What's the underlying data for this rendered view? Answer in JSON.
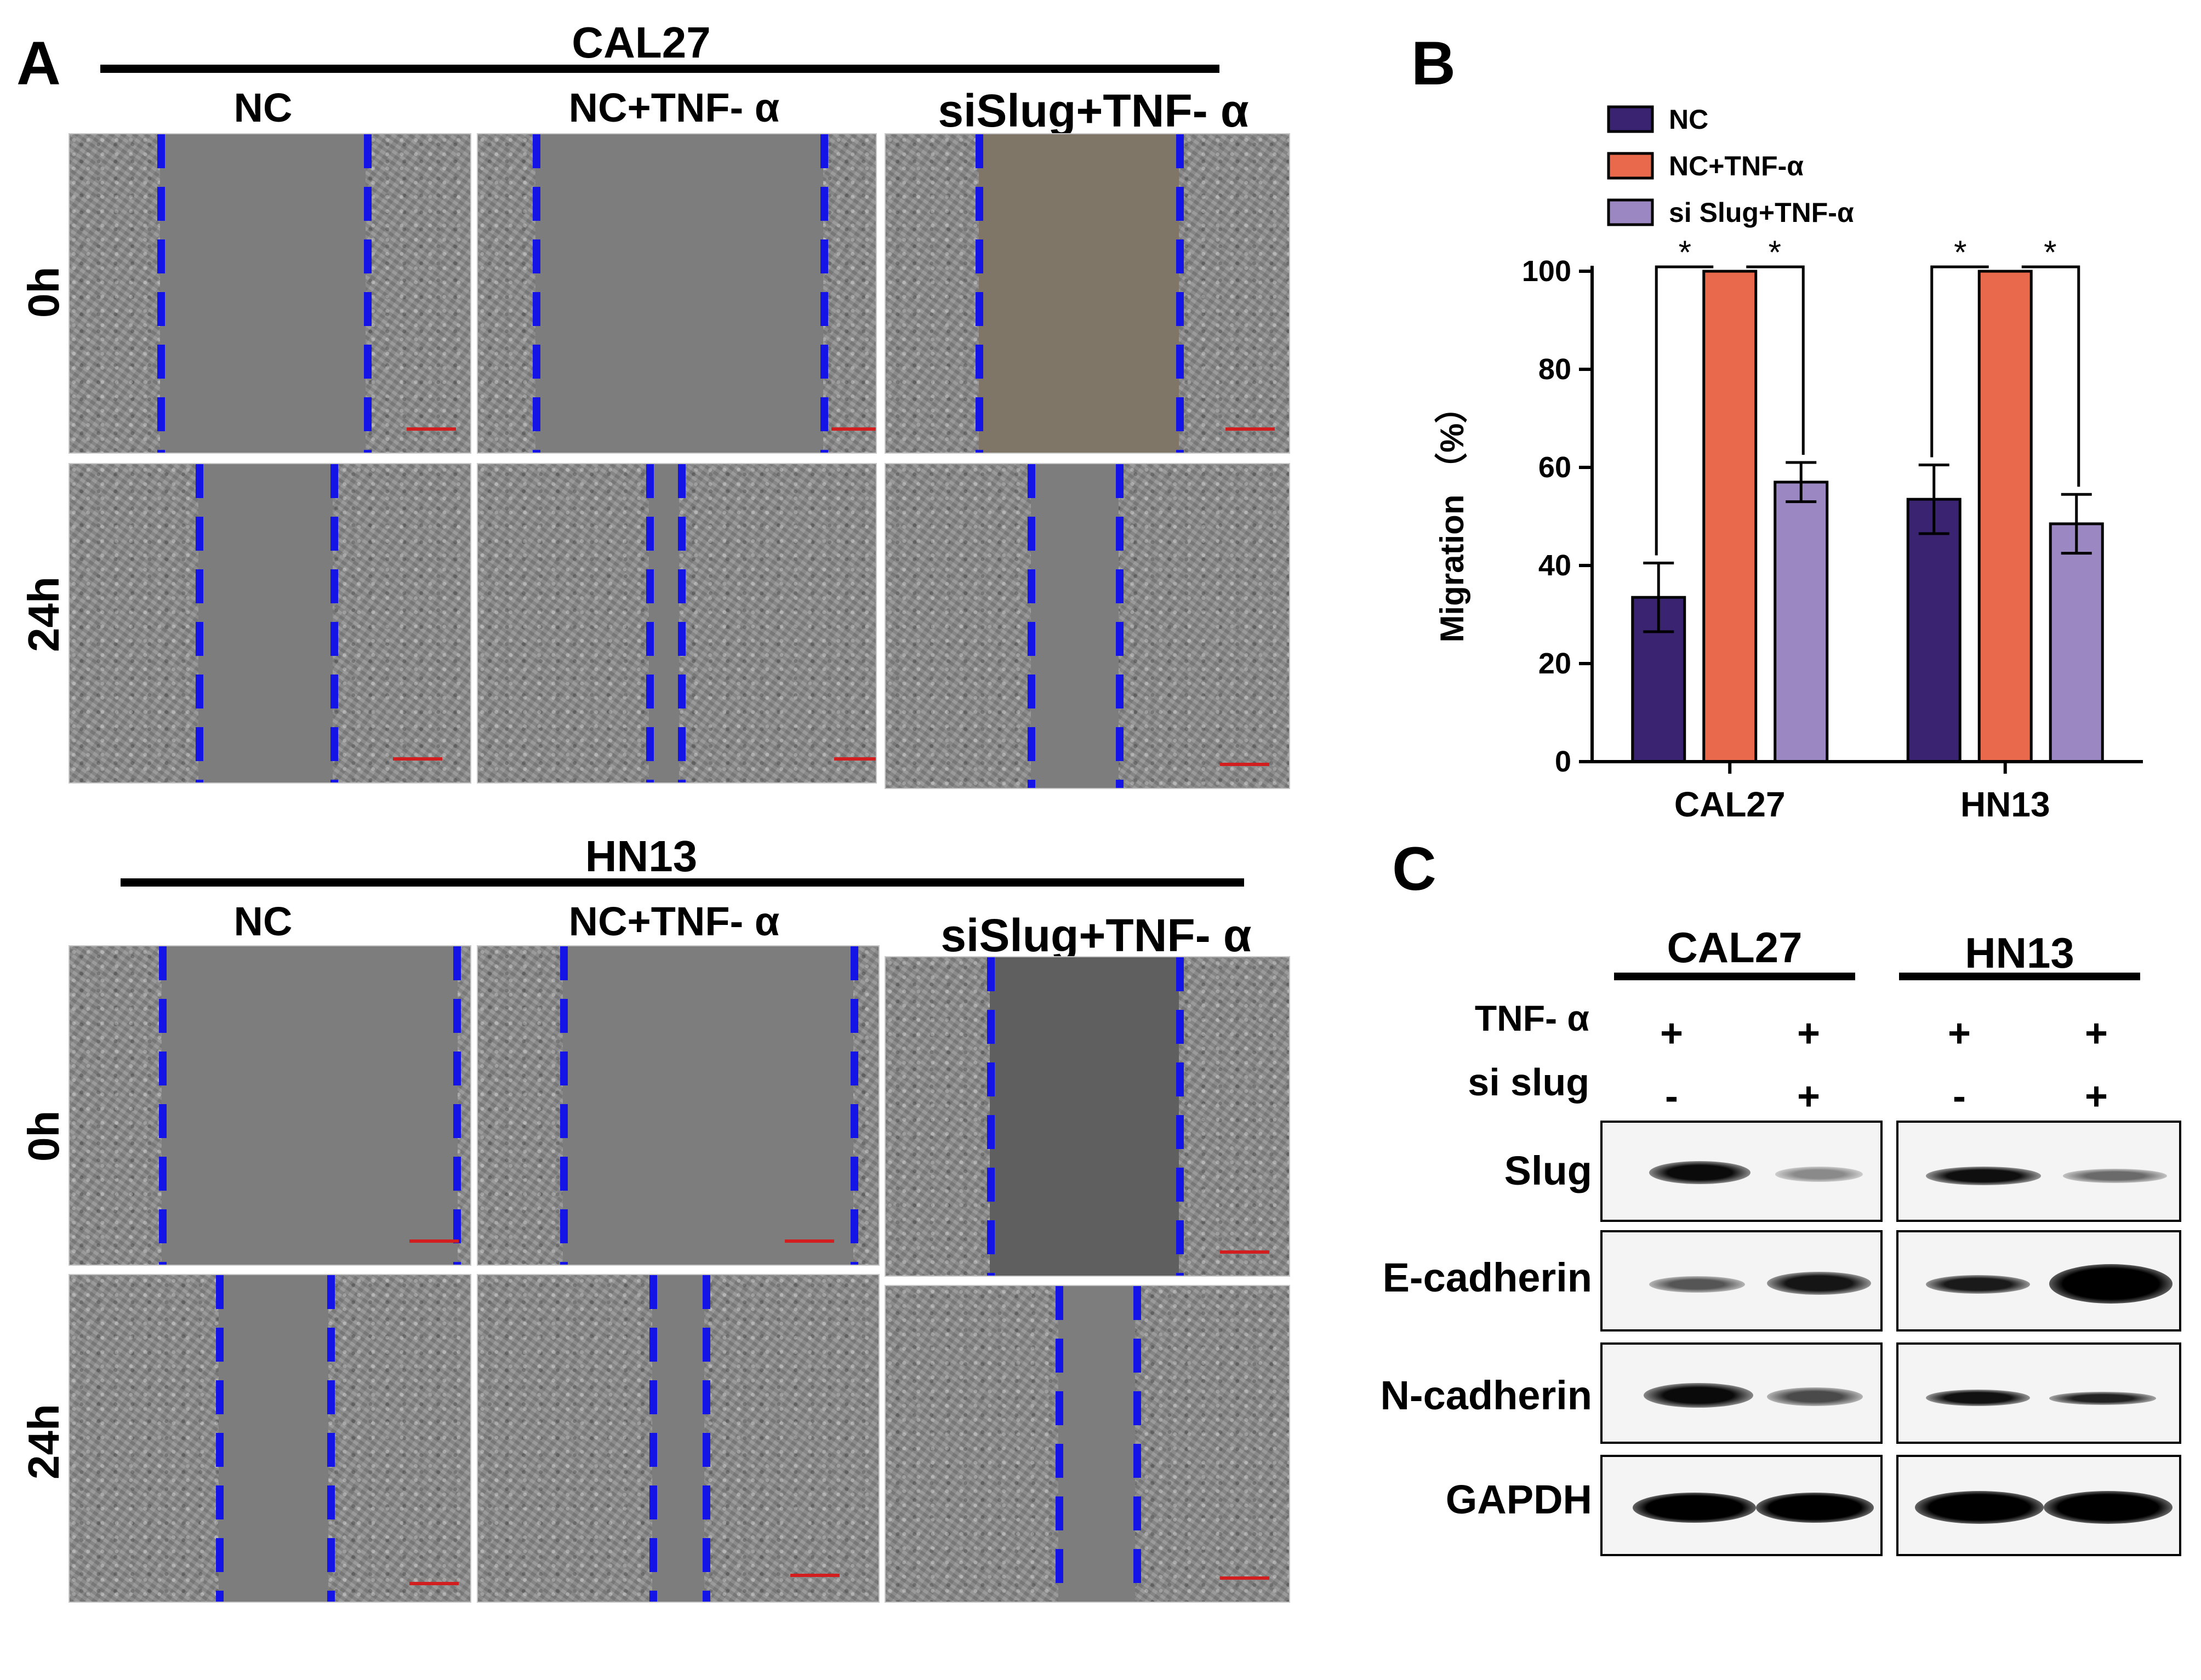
{
  "panelA": {
    "letter": "A",
    "top": {
      "cell_line": "CAL27",
      "columns": [
        "NC",
        "NC+TNF- α",
        "siSlug+TNF- α"
      ],
      "rows": [
        "0h",
        "24h"
      ]
    },
    "bottom": {
      "cell_line": "HN13",
      "columns": [
        "NC",
        "NC+TNF- α",
        "siSlug+TNF- α"
      ],
      "rows": [
        "0h",
        "24h"
      ]
    },
    "gap_line_color": "#1414e6",
    "scale_bar_color": "#d21e1e"
  },
  "panelB": {
    "letter": "B",
    "significance_mark": "*"
  },
  "chart_data": {
    "type": "bar",
    "categories": [
      "CAL27",
      "HN13"
    ],
    "series": [
      {
        "name": "NC",
        "values": [
          33.5,
          53.5
        ],
        "errors": [
          7,
          7
        ],
        "color": "#3a2472"
      },
      {
        "name": "NC+TNF-α",
        "values": [
          100,
          100
        ],
        "errors": [
          0,
          0
        ],
        "color": "#e8694b"
      },
      {
        "name": "si Slug+TNF-α",
        "values": [
          57,
          48.5
        ],
        "errors": [
          4,
          6
        ],
        "color": "#9b87c1"
      }
    ],
    "ylabel": "Migration （%）",
    "ylim": [
      0,
      100
    ],
    "yticks": [
      0,
      20,
      40,
      60,
      80,
      100
    ],
    "grid": false,
    "legend": "top-left",
    "significance": "*"
  },
  "panelC": {
    "letter": "C",
    "groups": [
      "CAL27",
      "HN13"
    ],
    "treatments": [
      {
        "label": "TNF- α",
        "signs": [
          "+",
          "+",
          "+",
          "+"
        ]
      },
      {
        "label": "si slug",
        "signs": [
          "-",
          "+",
          "-",
          "+"
        ]
      }
    ],
    "proteins": [
      "Slug",
      "E-cadherin",
      "N-cadherin",
      "GAPDH"
    ]
  }
}
